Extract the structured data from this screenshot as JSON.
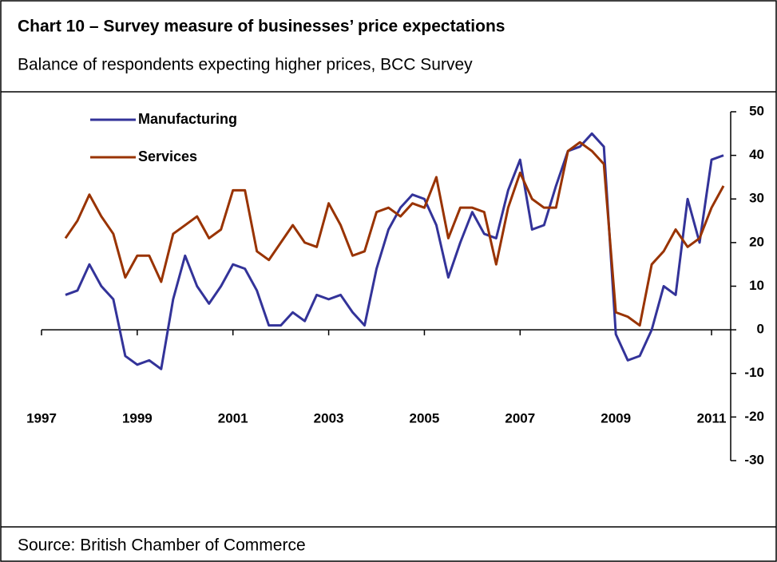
{
  "chart_data": {
    "type": "line",
    "title": "Chart 10 – Survey measure of businesses’ price expectations",
    "subtitle": "Balance of respondents expecting higher prices, BCC Survey",
    "source": "Source: British Chamber of Commerce",
    "x": [
      1997.5,
      1997.75,
      1998,
      1998.25,
      1998.5,
      1998.75,
      1999,
      1999.25,
      1999.5,
      1999.75,
      2000,
      2000.25,
      2000.5,
      2000.75,
      2001,
      2001.25,
      2001.5,
      2001.75,
      2002,
      2002.25,
      2002.5,
      2002.75,
      2003,
      2003.25,
      2003.5,
      2003.75,
      2004,
      2004.25,
      2004.5,
      2004.75,
      2005,
      2005.25,
      2005.5,
      2005.75,
      2006,
      2006.25,
      2006.5,
      2006.75,
      2007,
      2007.25,
      2007.5,
      2007.75,
      2008,
      2008.25,
      2008.5,
      2008.75,
      2009,
      2009.25,
      2009.5,
      2009.75,
      2010,
      2010.25,
      2010.5,
      2010.75,
      2011,
      2011.25
    ],
    "series": [
      {
        "name": "Manufacturing",
        "color": "#333399",
        "values": [
          8,
          9,
          15,
          10,
          7,
          -6,
          -8,
          -7,
          -9,
          7,
          17,
          10,
          6,
          10,
          15,
          14,
          9,
          1,
          1,
          4,
          2,
          8,
          7,
          8,
          4,
          1,
          14,
          23,
          28,
          31,
          30,
          24,
          12,
          20,
          27,
          22,
          21,
          32,
          39,
          23,
          24,
          33,
          41,
          42,
          45,
          42,
          -1,
          -7,
          -6,
          0,
          10,
          8,
          30,
          20,
          39,
          40
        ]
      },
      {
        "name": "Services",
        "color": "#993300",
        "values": [
          21,
          25,
          31,
          26,
          22,
          12,
          17,
          17,
          11,
          22,
          24,
          26,
          21,
          23,
          32,
          32,
          18,
          16,
          20,
          24,
          20,
          19,
          29,
          24,
          17,
          18,
          27,
          28,
          26,
          29,
          28,
          35,
          21,
          28,
          28,
          27,
          15,
          28,
          36,
          30,
          28,
          28,
          41,
          43,
          41,
          38,
          4,
          3,
          1,
          15,
          18,
          23,
          19,
          21,
          28,
          33
        ]
      }
    ],
    "xlim": [
      1997,
      2011.4
    ],
    "xticks": [
      1997,
      1999,
      2001,
      2003,
      2005,
      2007,
      2009,
      2011
    ],
    "ylim": [
      -30,
      50
    ],
    "yticks": [
      -30,
      -20,
      -10,
      0,
      10,
      20,
      30,
      40,
      50
    ],
    "legend": "upper left",
    "grid": false
  }
}
